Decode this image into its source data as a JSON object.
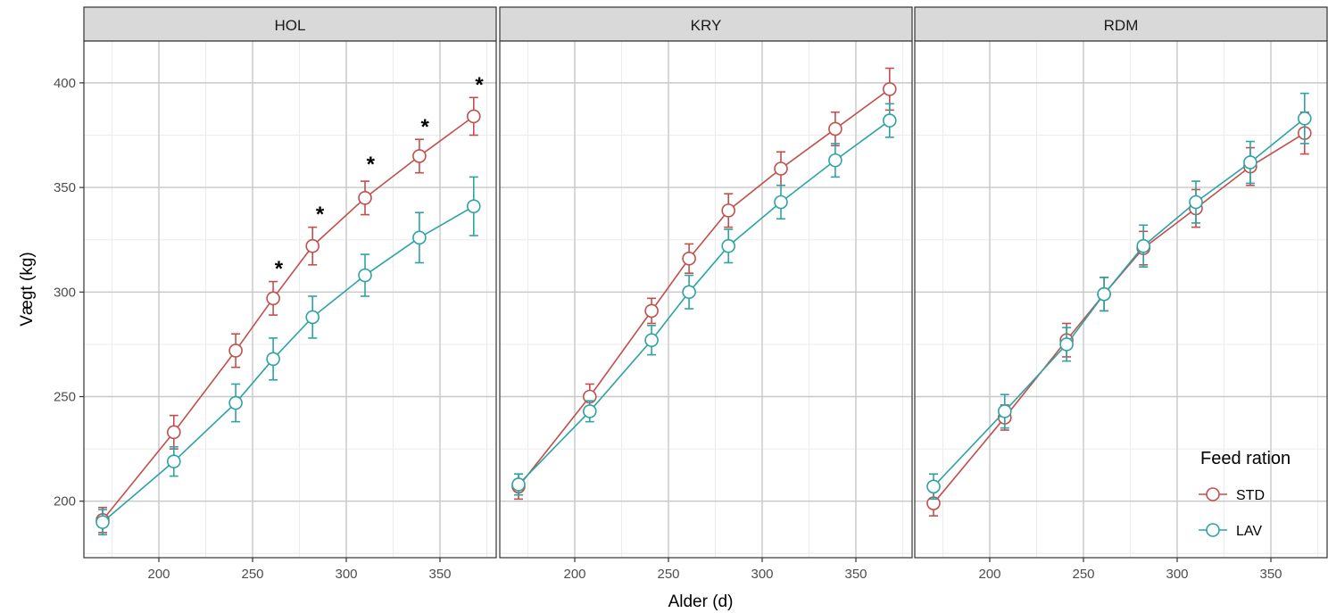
{
  "chart_data": {
    "type": "line",
    "xlabel": "Alder (d)",
    "ylabel": "Vægt (kg)",
    "xlim": [
      160,
      380
    ],
    "ylim": [
      173,
      420
    ],
    "x_ticks": [
      200,
      250,
      300,
      350
    ],
    "y_ticks": [
      200,
      250,
      300,
      350,
      400
    ],
    "grid": true,
    "legend": {
      "title": "Feed ration",
      "placement": "bottom-right",
      "entries": [
        "STD",
        "LAV"
      ]
    },
    "colors": {
      "STD": "#c0504d",
      "LAV": "#2ea3a3"
    },
    "panels": [
      {
        "title": "HOL",
        "series": [
          {
            "name": "STD",
            "x": [
              170,
              208,
              241,
              261,
              282,
              310,
              339,
              368
            ],
            "y": [
              191,
              233,
              272,
              297,
              322,
              345,
              365,
              384
            ],
            "err": [
              6,
              8,
              8,
              8,
              9,
              8,
              8,
              9
            ]
          },
          {
            "name": "LAV",
            "x": [
              170,
              208,
              241,
              261,
              282,
              310,
              339,
              368
            ],
            "y": [
              190,
              219,
              247,
              268,
              288,
              308,
              326,
              341
            ],
            "err": [
              6,
              7,
              9,
              10,
              10,
              10,
              12,
              14
            ]
          }
        ],
        "significance": [
          {
            "x": 264,
            "y": 312,
            "label": "*"
          },
          {
            "x": 286,
            "y": 338,
            "label": "*"
          },
          {
            "x": 313,
            "y": 362,
            "label": "*"
          },
          {
            "x": 342,
            "y": 380,
            "label": "*"
          },
          {
            "x": 371,
            "y": 400,
            "label": "*"
          }
        ]
      },
      {
        "title": "KRY",
        "series": [
          {
            "name": "STD",
            "x": [
              170,
              208,
              241,
              261,
              282,
              310,
              339,
              368
            ],
            "y": [
              207,
              250,
              291,
              316,
              339,
              359,
              378,
              397
            ],
            "err": [
              6,
              6,
              6,
              7,
              8,
              8,
              8,
              10
            ]
          },
          {
            "name": "LAV",
            "x": [
              170,
              208,
              241,
              261,
              282,
              310,
              339,
              368
            ],
            "y": [
              208,
              243,
              277,
              300,
              322,
              343,
              363,
              382
            ],
            "err": [
              5,
              5,
              7,
              8,
              8,
              8,
              8,
              8
            ]
          }
        ],
        "significance": []
      },
      {
        "title": "RDM",
        "series": [
          {
            "name": "STD",
            "x": [
              170,
              208,
              241,
              261,
              282,
              310,
              339,
              368
            ],
            "y": [
              199,
              240,
              277,
              299,
              321,
              340,
              360,
              376
            ],
            "err": [
              6,
              6,
              8,
              8,
              8,
              9,
              9,
              10
            ]
          },
          {
            "name": "LAV",
            "x": [
              170,
              208,
              241,
              261,
              282,
              310,
              339,
              368
            ],
            "y": [
              207,
              243,
              275,
              299,
              322,
              343,
              362,
              383
            ],
            "err": [
              6,
              8,
              8,
              8,
              10,
              10,
              10,
              12
            ]
          }
        ],
        "significance": []
      }
    ]
  }
}
